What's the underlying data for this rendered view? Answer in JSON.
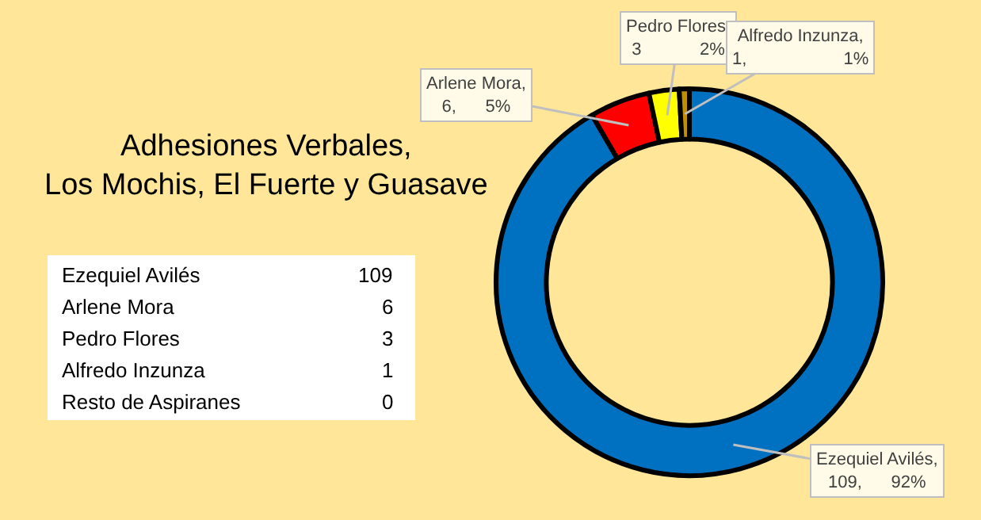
{
  "chart_data": [
    {
      "type": "donut",
      "title": "Adhesiones Verbales,\nLos Mochis, El Fuerte y Guasave",
      "values": [
        109,
        6,
        3,
        1
      ],
      "colors": [
        "#0070c0",
        "#ff0000",
        "#ffff00",
        "#bf9000"
      ],
      "value_labels": [
        "Ezequiel Avilés,\n109,      92%",
        "Arlene Mora,\n6,      5%",
        "Pedro Flores,\n3            2%",
        "Alfredo Inzunza,\n1,                    1%"
      ],
      "legend": false
    },
    {
      "type": "other",
      "categories": [
        "Ezequiel Avilés",
        "Arlene Mora",
        "Pedro Flores",
        "Alfredo Inzunza",
        "Resto de Aspiranes"
      ],
      "values": [
        109,
        6,
        3,
        1,
        0
      ],
      "data_labels": true
    }
  ]
}
